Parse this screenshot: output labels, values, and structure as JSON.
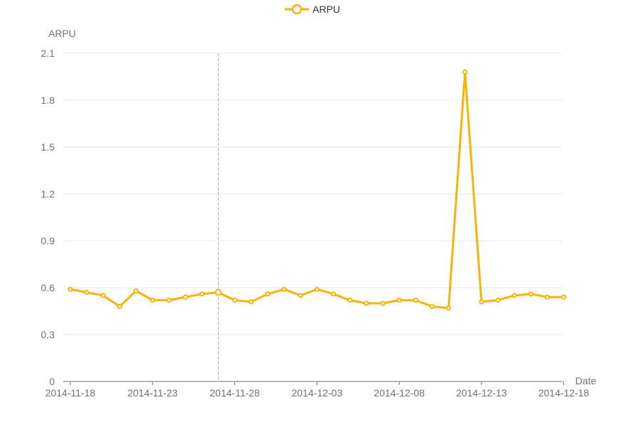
{
  "chart_data": {
    "type": "line",
    "legend": {
      "entries": [
        "ARPU"
      ],
      "placement": "top-center"
    },
    "xlabel": "Date",
    "ylabel": "ARPU",
    "ylim": [
      0,
      2.1
    ],
    "yticks": [
      "0",
      "0.3",
      "0.6",
      "0.9",
      "1.2",
      "1.5",
      "1.8",
      "2.1"
    ],
    "xticks": [
      "2014-11-18",
      "2014-11-23",
      "2014-11-28",
      "2014-12-03",
      "2014-12-08",
      "2014-12-13",
      "2014-12-18"
    ],
    "grid": true,
    "colors": {
      "series": "#f9b208",
      "grid": "#e0e6f1",
      "axis": "#6e7079",
      "pointer": "#aaaaaa"
    },
    "pointer_date": "2014-11-27",
    "series": [
      {
        "name": "ARPU",
        "x": [
          "2014-11-18",
          "2014-11-19",
          "2014-11-20",
          "2014-11-21",
          "2014-11-22",
          "2014-11-23",
          "2014-11-24",
          "2014-11-25",
          "2014-11-26",
          "2014-11-27",
          "2014-11-28",
          "2014-11-29",
          "2014-11-30",
          "2014-12-01",
          "2014-12-02",
          "2014-12-03",
          "2014-12-04",
          "2014-12-05",
          "2014-12-06",
          "2014-12-07",
          "2014-12-08",
          "2014-12-09",
          "2014-12-10",
          "2014-12-11",
          "2014-12-12",
          "2014-12-13",
          "2014-12-14",
          "2014-12-15",
          "2014-12-16",
          "2014-12-17",
          "2014-12-18"
        ],
        "values": [
          0.59,
          0.57,
          0.55,
          0.48,
          0.58,
          0.52,
          0.52,
          0.54,
          0.56,
          0.57,
          0.52,
          0.51,
          0.56,
          0.59,
          0.55,
          0.59,
          0.56,
          0.52,
          0.5,
          0.5,
          0.52,
          0.52,
          0.48,
          0.47,
          1.98,
          0.51,
          0.52,
          0.55,
          0.56,
          0.54,
          0.54
        ]
      }
    ]
  }
}
